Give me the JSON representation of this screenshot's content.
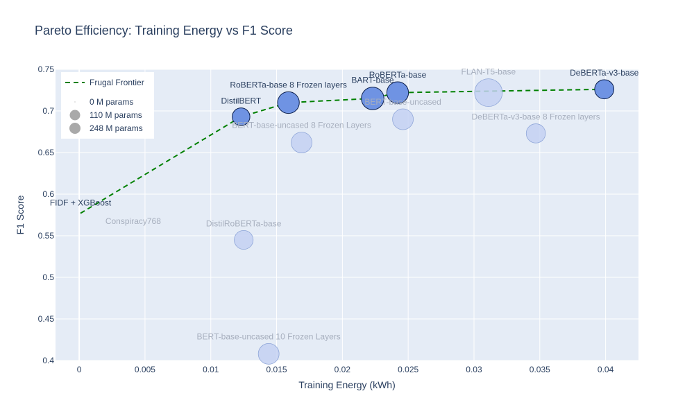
{
  "chart_data": {
    "type": "scatter",
    "title": "Pareto Efficiency: Training Energy vs F1 Score",
    "xlabel": "Training Energy (kWh)",
    "ylabel": "F1 Score",
    "xlim": [
      -0.0018,
      0.0425
    ],
    "ylim": [
      0.4,
      0.75
    ],
    "xticks": [
      0,
      0.005,
      0.01,
      0.015,
      0.02,
      0.025,
      0.03,
      0.035,
      0.04
    ],
    "xtick_labels": [
      "0",
      "0.005",
      "0.01",
      "0.015",
      "0.02",
      "0.025",
      "0.03",
      "0.035",
      "0.04"
    ],
    "yticks": [
      0.4,
      0.45,
      0.5,
      0.55,
      0.6,
      0.65,
      0.7,
      0.75
    ],
    "ytick_labels": [
      "0.4",
      "0.45",
      "0.5",
      "0.55",
      "0.6",
      "0.65",
      "0.7",
      "0.75"
    ],
    "grid": true,
    "legend_position": "top-left",
    "legend": {
      "frontier_label": "Frugal Frontier",
      "size_entries": [
        {
          "label": "0 M params",
          "params_m": 0
        },
        {
          "label": "110 M params",
          "params_m": 110
        },
        {
          "label": "248 M params",
          "params_m": 248
        }
      ]
    },
    "points": [
      {
        "name": "FIDF + XGBoost",
        "x": 0.0001,
        "y": 0.577,
        "params_m": 0,
        "on_frontier": true
      },
      {
        "name": "DistilBERT",
        "x": 0.0123,
        "y": 0.693,
        "params_m": 66,
        "on_frontier": true
      },
      {
        "name": "RoBERTa-base 8 Frozen layers",
        "x": 0.0159,
        "y": 0.71,
        "params_m": 125,
        "on_frontier": true
      },
      {
        "name": "BART-base",
        "x": 0.0223,
        "y": 0.715,
        "params_m": 140,
        "on_frontier": true
      },
      {
        "name": "RoBERTa-base",
        "x": 0.0242,
        "y": 0.722,
        "params_m": 125,
        "on_frontier": true
      },
      {
        "name": "DeBERTa-v3-base",
        "x": 0.0399,
        "y": 0.726,
        "params_m": 86,
        "on_frontier": true
      },
      {
        "name": "Conspiracy768",
        "x": 0.0041,
        "y": 0.555,
        "params_m": 0,
        "on_frontier": false
      },
      {
        "name": "DistilRoBERTa-base",
        "x": 0.0125,
        "y": 0.545,
        "params_m": 82,
        "on_frontier": false
      },
      {
        "name": "BERT-base-uncased 8 Frozen Layers",
        "x": 0.0169,
        "y": 0.662,
        "params_m": 110,
        "on_frontier": false
      },
      {
        "name": "BERT-base-uncased",
        "x": 0.0246,
        "y": 0.69,
        "params_m": 110,
        "on_frontier": false
      },
      {
        "name": "FLAN-T5-base",
        "x": 0.0311,
        "y": 0.722,
        "params_m": 248,
        "on_frontier": false
      },
      {
        "name": "DeBERTa-v3-base 8 Frozen layers",
        "x": 0.0347,
        "y": 0.673,
        "params_m": 86,
        "on_frontier": false
      },
      {
        "name": "BERT-base-uncased 10 Frozen Layers",
        "x": 0.0144,
        "y": 0.408,
        "params_m": 110,
        "on_frontier": false
      }
    ],
    "frontier": [
      {
        "x": 0.0001,
        "y": 0.577
      },
      {
        "x": 0.0123,
        "y": 0.693
      },
      {
        "x": 0.0159,
        "y": 0.71
      },
      {
        "x": 0.0223,
        "y": 0.715
      },
      {
        "x": 0.0242,
        "y": 0.722
      },
      {
        "x": 0.0399,
        "y": 0.726
      }
    ],
    "colors": {
      "plot_bg": "#e5ecf6",
      "grid": "#ffffff",
      "frontier_marker": "#6f93e3",
      "other_marker": "#c4d1f2",
      "frontier_line": "#008000",
      "legend_marker": "#a9a9a9",
      "frontier_text": "#2a3f5f",
      "other_text": "#a7afbe"
    }
  }
}
